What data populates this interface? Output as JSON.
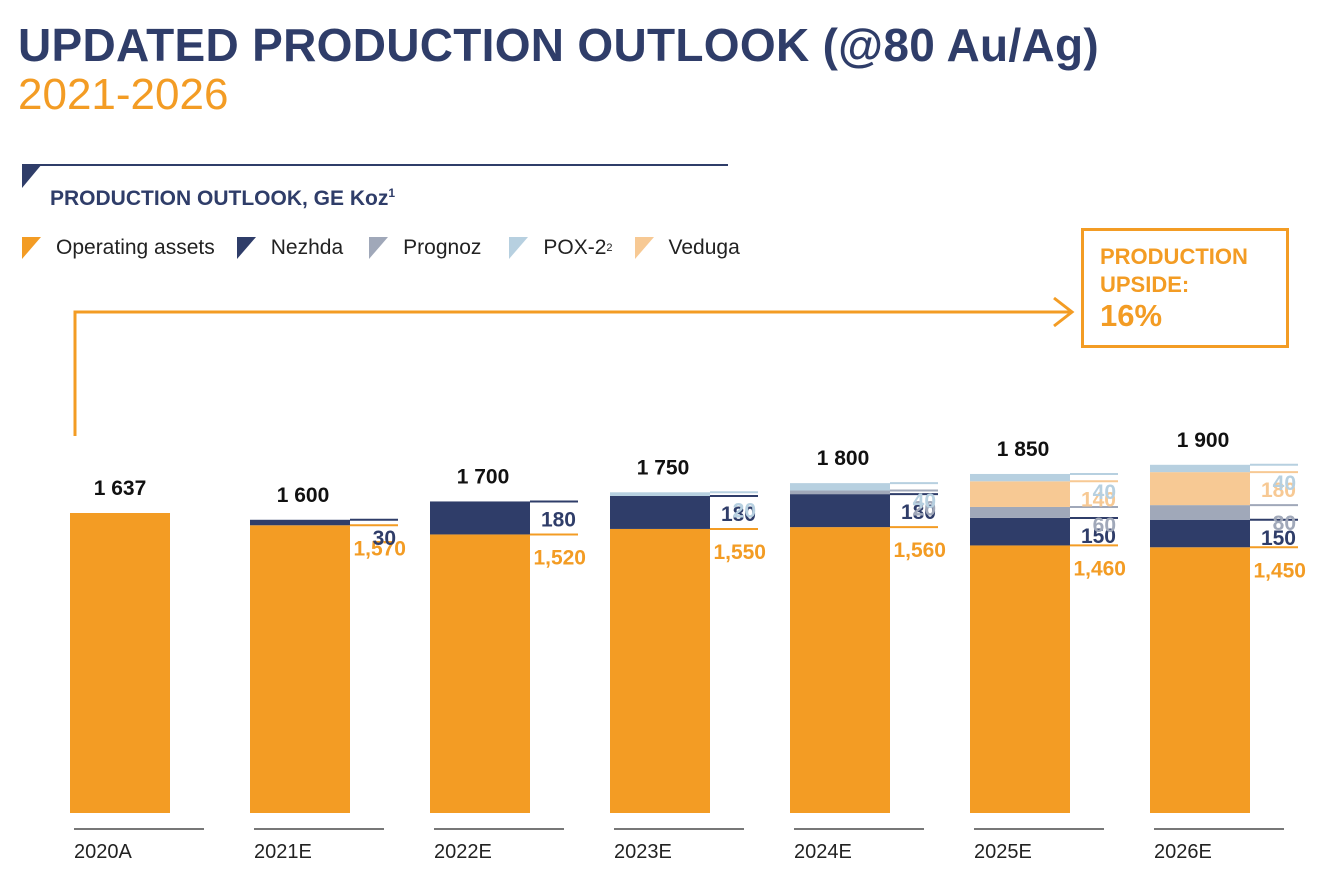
{
  "header": {
    "title": "UPDATED PRODUCTION OUTLOOK (@80 Au/Ag)",
    "subtitle": "2021-2026"
  },
  "section": {
    "title": "PRODUCTION OUTLOOK, GE Koz",
    "footnote": "1"
  },
  "legend": [
    {
      "label": "Operating assets",
      "sup": "",
      "color": "#f39c24"
    },
    {
      "label": "Nezhda",
      "sup": "",
      "color": "#2f3d69"
    },
    {
      "label": "Prognoz",
      "sup": "",
      "color": "#a0a8b9"
    },
    {
      "label": "POX-2",
      "sup": "2",
      "color": "#b7d0e0"
    },
    {
      "label": "Veduga",
      "sup": "",
      "color": "#f7c994"
    }
  ],
  "upside": {
    "label": "PRODUCTION\nUPSIDE:",
    "value": "16%"
  },
  "colors": {
    "primary": "#2f3d69",
    "accent": "#f39c24"
  },
  "chart_data": {
    "type": "bar",
    "stacked": true,
    "title": "PRODUCTION OUTLOOK, GE Koz",
    "xlabel": "",
    "ylabel": "GE Koz",
    "ylim": [
      0,
      1900
    ],
    "grid": false,
    "legend_position": "top-left",
    "categories": [
      "2020A",
      "2021E",
      "2022E",
      "2023E",
      "2024E",
      "2025E",
      "2026E"
    ],
    "totals": [
      1637,
      1600,
      1700,
      1750,
      1800,
      1850,
      1900
    ],
    "total_labels": [
      "1 637",
      "1 600",
      "1 700",
      "1 750",
      "1 800",
      "1 850",
      "1 900"
    ],
    "series": [
      {
        "name": "Operating assets",
        "color": "#f39c24",
        "values": [
          1637,
          1570,
          1520,
          1550,
          1560,
          1460,
          1450
        ],
        "labels": [
          "",
          "1,570",
          "1,520",
          "1,550",
          "1,560",
          "1,460",
          "1,450"
        ]
      },
      {
        "name": "Nezhda",
        "color": "#2f3d69",
        "values": [
          0,
          30,
          180,
          180,
          180,
          150,
          150
        ],
        "labels": [
          "",
          "30",
          "180",
          "180",
          "180",
          "150",
          "150"
        ]
      },
      {
        "name": "Prognoz",
        "color": "#a0a8b9",
        "values": [
          0,
          0,
          0,
          0,
          20,
          60,
          80
        ],
        "labels": [
          "",
          "",
          "",
          "",
          "20",
          "60",
          "80"
        ]
      },
      {
        "name": "Veduga",
        "color": "#f7c994",
        "values": [
          0,
          0,
          0,
          0,
          0,
          140,
          180
        ],
        "labels": [
          "",
          "",
          "",
          "",
          "",
          "140",
          "180"
        ]
      },
      {
        "name": "POX-2",
        "color": "#b7d0e0",
        "values": [
          0,
          0,
          0,
          20,
          40,
          40,
          40
        ],
        "labels": [
          "",
          "",
          "",
          "20",
          "40",
          "40",
          "40"
        ]
      }
    ],
    "annotations": [
      {
        "text": "PRODUCTION UPSIDE: 16%",
        "from": "2020A",
        "to": "2026E"
      }
    ]
  }
}
